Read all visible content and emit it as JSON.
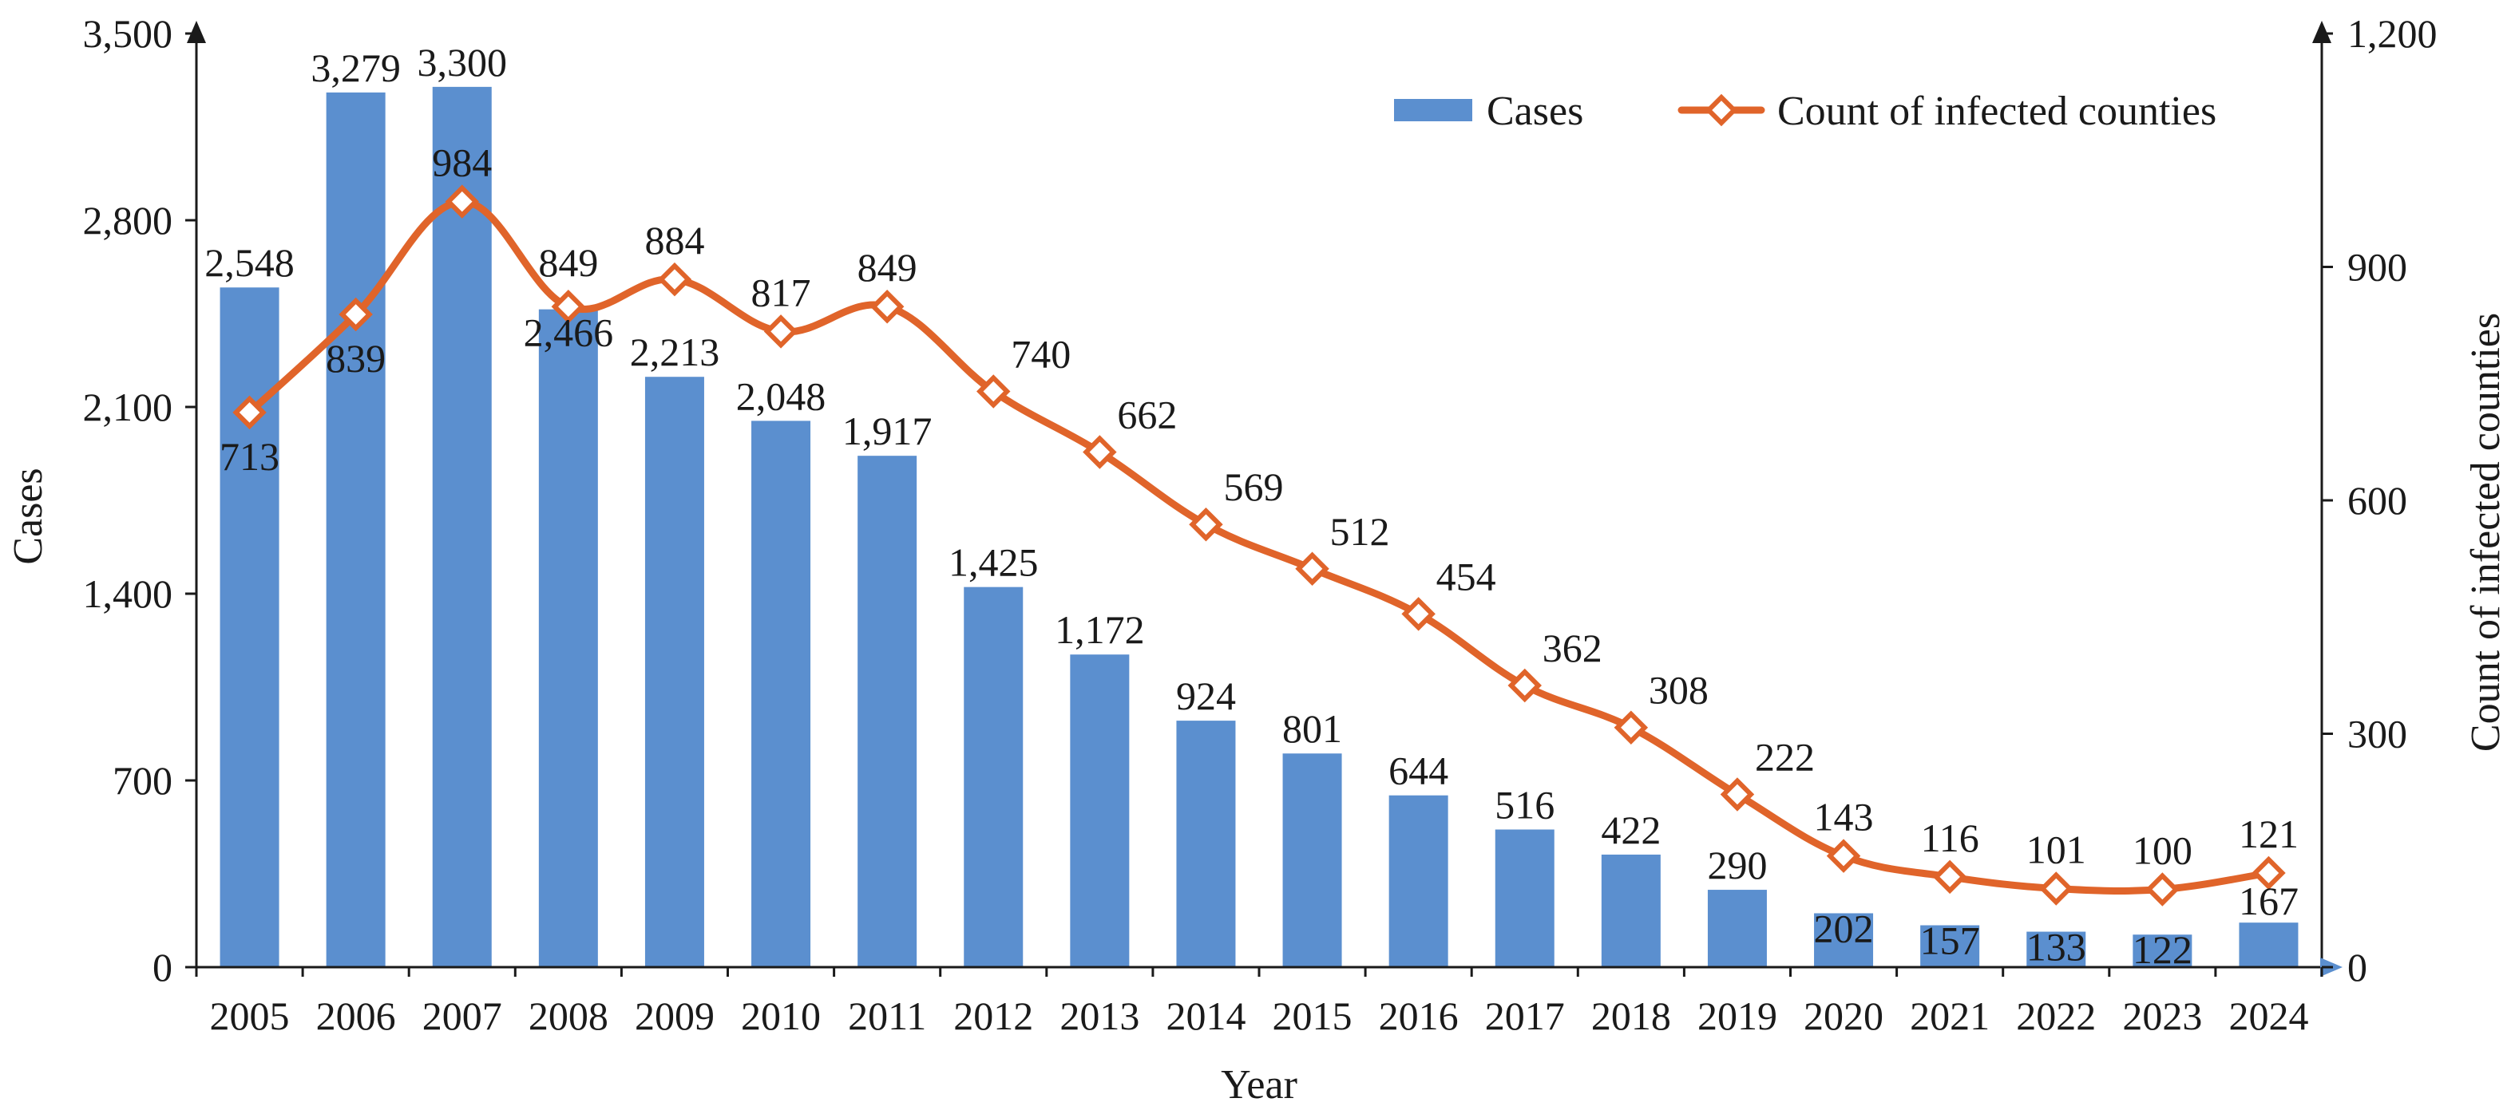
{
  "chart_data": {
    "type": "bar",
    "categories": [
      "2005",
      "2006",
      "2007",
      "2008",
      "2009",
      "2010",
      "2011",
      "2012",
      "2013",
      "2014",
      "2015",
      "2016",
      "2017",
      "2018",
      "2019",
      "2020",
      "2021",
      "2022",
      "2023",
      "2024"
    ],
    "series": [
      {
        "name": "Cases",
        "type": "bar",
        "axis": "left",
        "color": "#5b8fcf",
        "values": [
          2548,
          3279,
          3300,
          2466,
          2213,
          2048,
          1917,
          1425,
          1172,
          924,
          801,
          644,
          516,
          422,
          290,
          202,
          157,
          133,
          122,
          167
        ],
        "labels": [
          "2,548",
          "3,279",
          "3,300",
          "2,466",
          "2,213",
          "2,048",
          "1,917",
          "1,425",
          "1,172",
          "924",
          "801",
          "644",
          "516",
          "422",
          "290",
          "202",
          "157",
          "133",
          "122",
          "167"
        ]
      },
      {
        "name": "Count of infected counties",
        "type": "line",
        "axis": "right",
        "color": "#e0642a",
        "marker": "diamond",
        "smooth": true,
        "values": [
          713,
          839,
          984,
          849,
          884,
          817,
          849,
          740,
          662,
          569,
          512,
          454,
          362,
          308,
          222,
          143,
          116,
          101,
          100,
          121
        ],
        "labels": [
          "713",
          "839",
          "984",
          "849",
          "884",
          "817",
          "849",
          "740",
          "662",
          "569",
          "512",
          "454",
          "362",
          "308",
          "222",
          "143",
          "116",
          "101",
          "100",
          "121"
        ]
      }
    ],
    "xlabel": "Year",
    "ylabel": "Cases",
    "y2label": "Count of infected counties",
    "ylim": [
      0,
      3500
    ],
    "y2lim": [
      0,
      1200
    ],
    "yticks": [
      "0",
      "700",
      "1,400",
      "2,100",
      "2,800",
      "3,500"
    ],
    "y2ticks": [
      "0",
      "300",
      "600",
      "900",
      "1,200"
    ],
    "legend": {
      "position": "top-right",
      "items": [
        "Cases",
        "Count of infected counties"
      ]
    },
    "grid": false
  }
}
